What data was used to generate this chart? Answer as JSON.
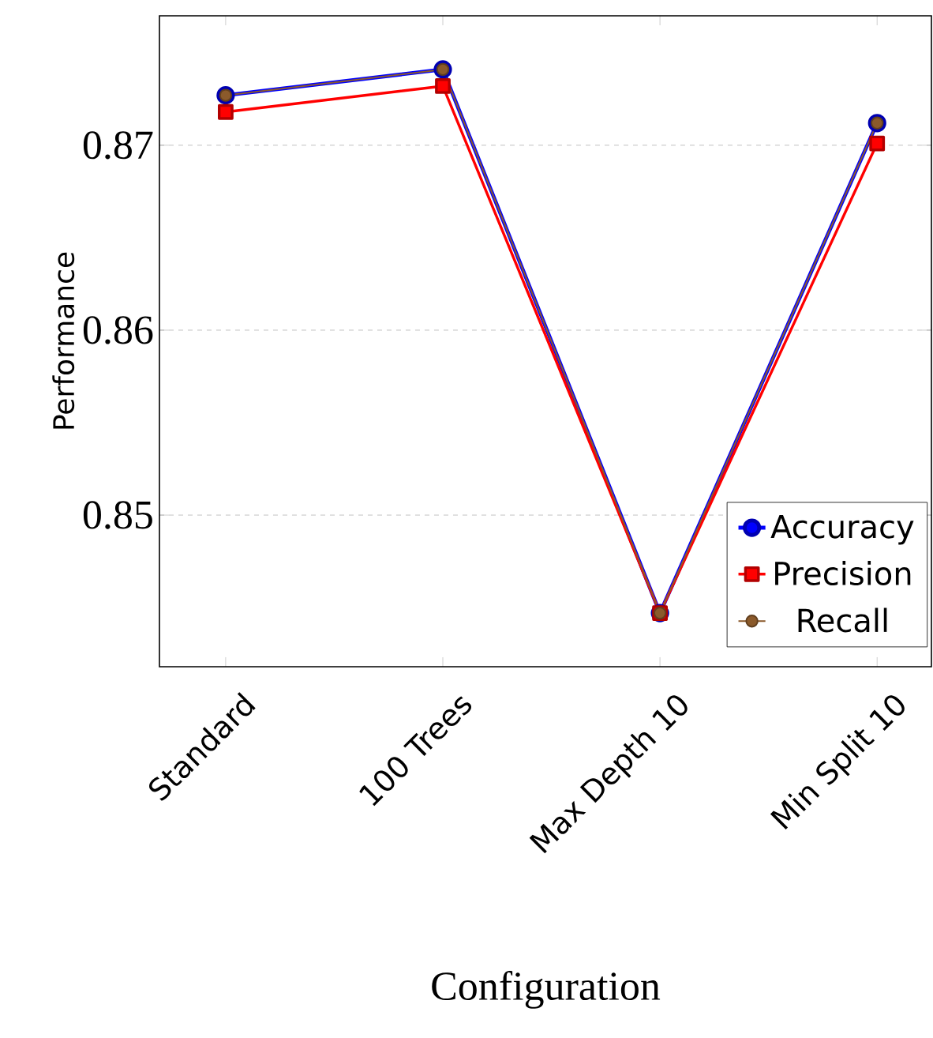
{
  "chart_data": {
    "type": "line",
    "xlabel": "Configuration",
    "ylabel": "Performance",
    "categories": [
      "Standard",
      "100 Trees",
      "Max Depth  10",
      "Min Split  10"
    ],
    "series": [
      {
        "name": "Accuracy",
        "color": "#0000ff",
        "marker": "circle",
        "values": [
          0.8727,
          0.8741,
          0.8447,
          0.8712
        ]
      },
      {
        "name": "Precision",
        "color": "#ff0000",
        "marker": "square",
        "values": [
          0.8718,
          0.8732,
          0.8447,
          0.8701
        ]
      },
      {
        "name": "Recall",
        "color": "#8b5a2b",
        "marker": "circle",
        "values": [
          0.8727,
          0.8741,
          0.8447,
          0.8712
        ]
      }
    ],
    "ylim": [
      0.8418,
      0.877
    ],
    "yticks": [
      0.85,
      0.86,
      0.87
    ],
    "grid": "y",
    "legend": "bottom right",
    "line_style": "solid"
  }
}
